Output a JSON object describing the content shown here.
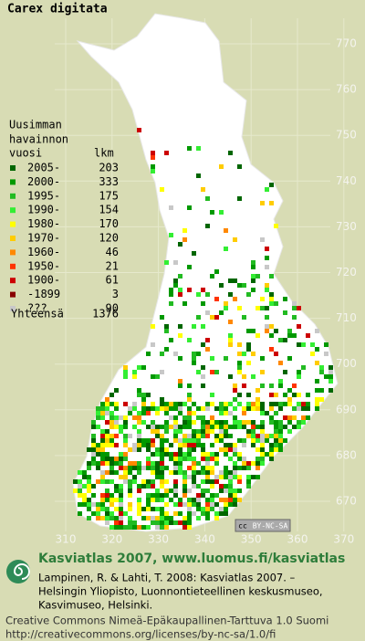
{
  "title": "Carex digitata",
  "legend": {
    "heading": [
      "Uusimman",
      "havainnon"
    ],
    "year_header": "vuosi",
    "count_header": "lkm",
    "items": [
      {
        "label": "2005-",
        "count": 203,
        "color": "#006600"
      },
      {
        "label": "2000-",
        "count": 333,
        "color": "#009900"
      },
      {
        "label": "1995-",
        "count": 175,
        "color": "#22bb22"
      },
      {
        "label": "1990-",
        "count": 154,
        "color": "#33ee33"
      },
      {
        "label": "1980-",
        "count": 170,
        "color": "#ffff00"
      },
      {
        "label": "1970-",
        "count": 120,
        "color": "#ffcc00"
      },
      {
        "label": "1960-",
        "count": 46,
        "color": "#ff8800"
      },
      {
        "label": "1950-",
        "count": 21,
        "color": "#ff3300"
      },
      {
        "label": "1900-",
        "count": 61,
        "color": "#cc0000"
      },
      {
        "label": "-1899",
        "count": 3,
        "color": "#880000"
      },
      {
        "label": "???",
        "count": 90,
        "color": "#c8c8c8"
      }
    ],
    "total_label": "Yhteensä",
    "total": 1376
  },
  "north_ticks": [
    770,
    760,
    750,
    740,
    730,
    720,
    710,
    700,
    690,
    680,
    670
  ],
  "east_ticks": [
    310,
    320,
    330,
    340,
    350,
    360,
    370
  ],
  "badge": {
    "icon": "cc",
    "text": "BY-NC-SA"
  },
  "footer": {
    "brand": "Kasviatlas 2007, www.luomus.fi/kasviatlas",
    "citation": [
      "Lampinen, R. & Lahti, T. 2008: Kasviatlas 2007. –",
      "Helsingin Yliopisto, Luonnontieteellinen keskusmuseo,",
      "Kasvimuseo, Helsinki."
    ],
    "license": [
      "Creative Commons Nimeä-Epäkaupallinen-Tarttuva 1.0 Suomi",
      "http://creativecommons.org/licenses/by-nc-sa/1.0/fi"
    ]
  }
}
